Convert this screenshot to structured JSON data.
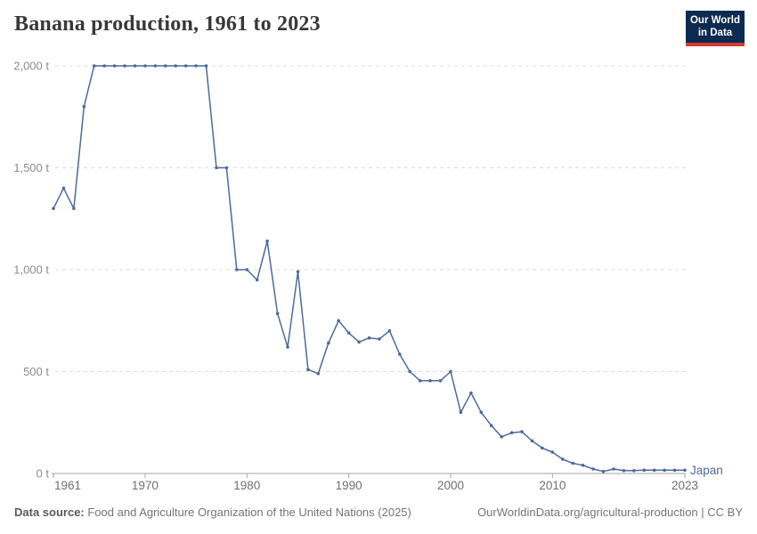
{
  "header": {
    "title": "Banana production, 1961 to 2023",
    "logo": {
      "line1": "Our World",
      "line2": "in Data"
    }
  },
  "footer": {
    "source_label": "Data source:",
    "source_text": " Food and Agriculture Organization of the United Nations (2025)",
    "link_text": "OurWorldinData.org/agricultural-production | CC BY"
  },
  "colors": {
    "series_blue": "#4C6A9C",
    "logo_bg": "#0d2b50",
    "logo_stripe": "#d63b2f",
    "grid": "#dcdcdc",
    "axis": "#a3a3a3",
    "y_tick_label": "#8c8c8c",
    "x_tick_label": "#707070",
    "title_text": "#383838"
  },
  "chart_data": {
    "type": "line",
    "title": "Banana production, 1961 to 2023",
    "unit": "t",
    "ylim": [
      0,
      2000
    ],
    "grid": "horizontal-dashed",
    "legend_position": "end-of-line-label",
    "yticks": [
      {
        "value": 0,
        "label": "0 t"
      },
      {
        "value": 500,
        "label": "500 t"
      },
      {
        "value": 1000,
        "label": "1,000 t"
      },
      {
        "value": 1500,
        "label": "1,500 t"
      },
      {
        "value": 2000,
        "label": "2,000 t"
      }
    ],
    "xticks": [
      1961,
      1970,
      1980,
      1990,
      2000,
      2010,
      2023
    ],
    "x": [
      1961,
      1962,
      1963,
      1964,
      1965,
      1966,
      1967,
      1968,
      1969,
      1970,
      1971,
      1972,
      1973,
      1974,
      1975,
      1976,
      1977,
      1978,
      1979,
      1980,
      1981,
      1982,
      1983,
      1984,
      1985,
      1986,
      1987,
      1988,
      1989,
      1990,
      1991,
      1992,
      1993,
      1994,
      1995,
      1996,
      1997,
      1998,
      1999,
      2000,
      2001,
      2002,
      2003,
      2004,
      2005,
      2006,
      2007,
      2008,
      2009,
      2010,
      2011,
      2012,
      2013,
      2014,
      2015,
      2016,
      2017,
      2018,
      2019,
      2020,
      2021,
      2022,
      2023
    ],
    "series": [
      {
        "name": "Japan",
        "color": "#4C6A9C",
        "values": [
          1300,
          1400,
          1300,
          1800,
          2000,
          2000,
          2000,
          2000,
          2000,
          2000,
          2000,
          2000,
          2000,
          2000,
          2000,
          2000,
          1500,
          1500,
          1000,
          1000,
          950,
          1140,
          785,
          620,
          990,
          510,
          490,
          640,
          750,
          690,
          645,
          665,
          660,
          700,
          585,
          500,
          455,
          455,
          455,
          500,
          300,
          395,
          300,
          235,
          180,
          200,
          205,
          160,
          125,
          105,
          70,
          50,
          40,
          22,
          10,
          22,
          14,
          14,
          16,
          16,
          16,
          16,
          16
        ]
      }
    ]
  }
}
